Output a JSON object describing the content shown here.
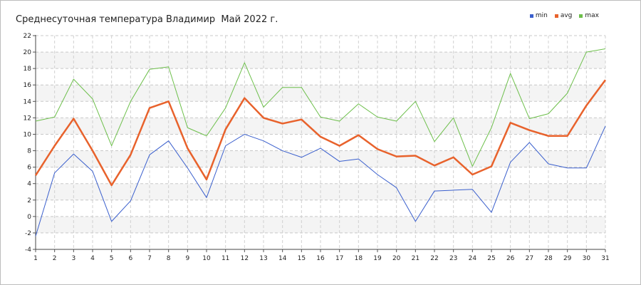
{
  "chart_data": {
    "type": "line",
    "title": "Среднесуточная температура Владимир  Май 2022 г.",
    "xlabel": "",
    "ylabel": "",
    "x": [
      1,
      2,
      3,
      4,
      5,
      6,
      7,
      8,
      9,
      10,
      11,
      12,
      13,
      14,
      15,
      16,
      17,
      18,
      19,
      20,
      21,
      22,
      23,
      24,
      25,
      26,
      27,
      28,
      29,
      30,
      31
    ],
    "ylim": [
      -4,
      22
    ],
    "yticks": [
      -4,
      -2,
      0,
      2,
      4,
      6,
      8,
      10,
      12,
      14,
      16,
      18,
      20,
      22
    ],
    "grid": true,
    "legend_position": "top-right",
    "series": [
      {
        "name": "min",
        "color": "#3a5fcd",
        "values": [
          -2.4,
          5.3,
          7.6,
          5.5,
          -0.6,
          1.9,
          7.5,
          9.2,
          5.9,
          2.3,
          8.6,
          10.0,
          9.2,
          8.0,
          7.2,
          8.3,
          6.7,
          7.0,
          5.1,
          3.5,
          -0.6,
          3.1,
          3.2,
          3.3,
          0.5,
          6.6,
          9.0,
          6.4,
          5.9,
          5.9,
          11.0
        ]
      },
      {
        "name": "avg",
        "color": "#e8622c",
        "values": [
          5.0,
          8.6,
          11.9,
          8.0,
          3.8,
          7.5,
          13.2,
          14.0,
          8.3,
          4.5,
          10.6,
          14.4,
          12.0,
          11.3,
          11.8,
          9.7,
          8.6,
          9.9,
          8.2,
          7.3,
          7.4,
          6.2,
          7.2,
          5.1,
          6.1,
          11.4,
          10.5,
          9.8,
          9.8,
          13.5,
          16.6
        ]
      },
      {
        "name": "max",
        "color": "#6dbf4b",
        "values": [
          11.6,
          12.1,
          16.7,
          14.3,
          8.6,
          14.0,
          17.9,
          18.2,
          10.8,
          9.8,
          13.2,
          18.7,
          13.3,
          15.7,
          15.7,
          12.1,
          11.6,
          13.7,
          12.1,
          11.6,
          14.0,
          9.1,
          12.0,
          6.1,
          10.8,
          17.4,
          11.9,
          12.5,
          15.0,
          20.0,
          20.4
        ]
      }
    ]
  }
}
